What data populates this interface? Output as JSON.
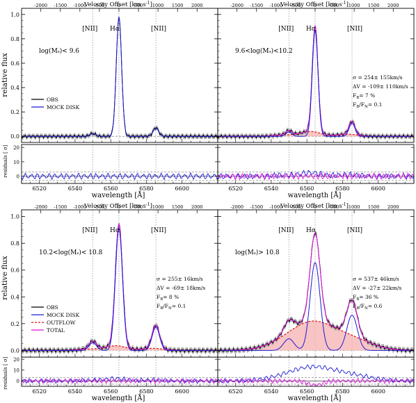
{
  "figure": {
    "top_axis_label": "Velocity Offset [km s",
    "top_axis_label_sup": "-1",
    "top_axis_label_end": "]",
    "ylabel_main": "relative flux",
    "ylabel_resid": "residuals [ σ]",
    "xlabel": "wavelength [Å]",
    "line_labels": {
      "nii_left": "[NII]",
      "ha": "Hα",
      "nii_right": "[NII]"
    }
  },
  "colors": {
    "obs": "#000000",
    "obs_band": "#b0b0b0",
    "mock_disk": "#1a1ad6",
    "outflow": "#dd1111",
    "outflow_fill": "#f5b0b0",
    "total": "#e011e0",
    "ref_line": "#888888"
  },
  "chart_data": [
    {
      "type": "line",
      "panel": "top-left",
      "label": "log(M",
      "label_sub": "*",
      "label_end": ")< 9.6",
      "xlim": [
        6510,
        6620
      ],
      "ylim": [
        -0.05,
        1.05
      ],
      "resid_ylim": [
        -5,
        22
      ],
      "x_ticks": [
        6520,
        6540,
        6560,
        6580,
        6600
      ],
      "y_ticks": [
        0.0,
        0.2,
        0.4,
        0.6,
        0.8,
        1.0
      ],
      "vel_ticks": [
        -2000,
        -1500,
        -1000,
        -500,
        0,
        500,
        1000,
        1500,
        2000
      ],
      "resid_ticks": [
        20,
        10,
        0
      ],
      "legend": [
        "OBS",
        "MOCK DISK"
      ],
      "params": [],
      "lines": {
        "ha_amp": 0.98,
        "nii_amp": 0.07,
        "sigma": 1.5
      },
      "outflow": null,
      "disk_scale": 1.0
    },
    {
      "type": "line",
      "panel": "top-right",
      "label": "9.6<log(M",
      "label_sub": "*",
      "label_end": ")<10.2",
      "xlim": [
        6510,
        6620
      ],
      "ylim": [
        -0.05,
        1.05
      ],
      "resid_ylim": [
        -5,
        22
      ],
      "x_ticks": [
        6520,
        6540,
        6560,
        6580,
        6600
      ],
      "y_ticks": [
        0.0,
        0.2,
        0.4,
        0.6,
        0.8,
        1.0
      ],
      "vel_ticks": [
        -2000,
        -1500,
        -1000,
        -500,
        0,
        500,
        1000,
        1500,
        2000
      ],
      "resid_ticks": [
        20,
        10,
        0
      ],
      "legend": [],
      "params": [
        {
          "text": "σ = 254± 155km/s"
        },
        {
          "text": "ΔV = -109± 110km/s"
        },
        {
          "text": "F",
          "sub": "B",
          "end": "= 7 %"
        },
        {
          "text": "F",
          "sub": "B",
          "mid": "/F",
          "sub2": "N",
          "end": "= 0.1"
        }
      ],
      "lines": {
        "ha_amp": 0.9,
        "nii_amp": 0.11,
        "sigma": 1.6
      },
      "outflow": {
        "amp": 0.04,
        "center_offset": -2.4,
        "sigma": 5.5
      },
      "disk_scale": 0.97
    },
    {
      "type": "line",
      "panel": "bottom-left",
      "label": "10.2<log(M",
      "label_sub": "*",
      "label_end": ")< 10.8",
      "xlim": [
        6510,
        6620
      ],
      "ylim": [
        -0.05,
        1.05
      ],
      "resid_ylim": [
        -5,
        22
      ],
      "x_ticks": [
        6520,
        6540,
        6560,
        6580,
        6600
      ],
      "y_ticks": [
        0.0,
        0.2,
        0.4,
        0.6,
        0.8,
        1.0
      ],
      "vel_ticks": [
        -2000,
        -1500,
        -1000,
        -500,
        0,
        500,
        1000,
        1500,
        2000
      ],
      "resid_ticks": [
        20,
        10,
        0
      ],
      "legend": [
        "OBS",
        "MOCK DISK",
        "OUTFLOW",
        "TOTAL"
      ],
      "params": [
        {
          "text": "σ = 255± 16km/s"
        },
        {
          "text": "ΔV = -69± 18km/s"
        },
        {
          "text": "F",
          "sub": "B",
          "end": "= 8 %"
        },
        {
          "text": "F",
          "sub": "B",
          "mid": "/F",
          "sub2": "N",
          "end": "= 0.1"
        }
      ],
      "lines": {
        "ha_amp": 0.94,
        "nii_amp": 0.18,
        "sigma": 2.0
      },
      "outflow": {
        "amp": 0.035,
        "center_offset": -1.5,
        "sigma": 5.6
      },
      "disk_scale": 0.97
    },
    {
      "type": "line",
      "panel": "bottom-right",
      "label": "log(M",
      "label_sub": "*",
      "label_end": ")> 10.8",
      "xlim": [
        6510,
        6620
      ],
      "ylim": [
        -0.05,
        1.05
      ],
      "resid_ylim": [
        -5,
        22
      ],
      "x_ticks": [
        6520,
        6540,
        6560,
        6580,
        6600
      ],
      "y_ticks": [
        0.0,
        0.2,
        0.4,
        0.6,
        0.8,
        1.0
      ],
      "vel_ticks": [
        -2000,
        -1500,
        -1000,
        -500,
        0,
        500,
        1000,
        1500,
        2000
      ],
      "resid_ticks": [
        20,
        10,
        0
      ],
      "legend": [],
      "params": [
        {
          "text": "σ = 537± 46km/s"
        },
        {
          "text": "ΔV = -27± 22km/s"
        },
        {
          "text": "F",
          "sub": "B",
          "end": "= 36 %"
        },
        {
          "text": "F",
          "sub": "B",
          "mid": "/F",
          "sub2": "N",
          "end": "= 0.6"
        }
      ],
      "lines": {
        "ha_amp": 0.82,
        "nii_amp": 0.33,
        "sigma": 2.8
      },
      "outflow": {
        "amp": 0.18,
        "center_offset": -0.6,
        "sigma": 11.5
      },
      "disk_scale": 0.8
    }
  ]
}
